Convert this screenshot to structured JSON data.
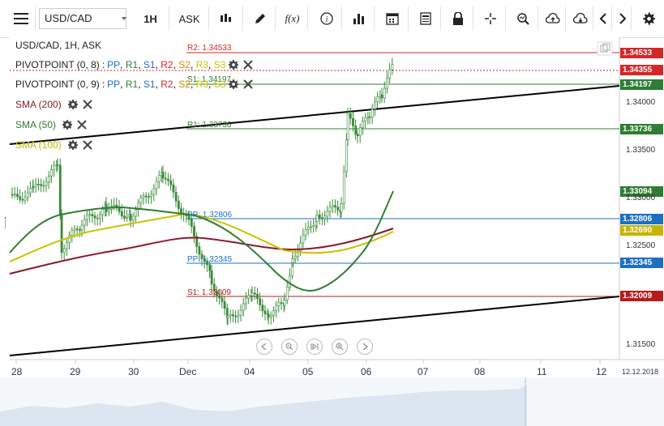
{
  "toolbar": {
    "menu_icon": "hamburger-icon",
    "symbol": "USD/CAD",
    "timeframe": "1H",
    "price_type": "ASK",
    "tools": [
      "candle-icon",
      "pencil-icon",
      "function-icon",
      "info-icon",
      "bar-chart-icon",
      "calendar-icon",
      "document-icon",
      "lock-icon",
      "crosshair-icon",
      "zoom-icon",
      "cloud-upload-icon",
      "cloud-download-icon",
      "chevron-left-icon",
      "chevron-right-icon",
      "gear-icon"
    ]
  },
  "legend": {
    "title": "USD/CAD, 1H, ASK",
    "pivot1": {
      "name": "PIVOTPOINT (0, 8)",
      "pp": "PP",
      "r1": "R1",
      "s1": "S1",
      "r2": "R2",
      "s2": "S2",
      "r3": "R3",
      "s3": "S3"
    },
    "pivot2": {
      "name": "PIVOTPOINT (0, 9)",
      "pp": "PP",
      "r1": "R1",
      "s1": "S1",
      "r2": "R2",
      "s2": "S2",
      "r3": "R3",
      "s3": "S3"
    },
    "sma200": "SMA (200)",
    "sma50": "SMA (50)",
    "sma100": "SMA (100)",
    "sep": ":",
    "comma": ","
  },
  "pivot_labels": {
    "r2": "R2: 1.34533",
    "s1_hidden": "S1: 1.34197",
    "r1": "R1: 1.33736",
    "pp_a": "PP: 1.32806",
    "pp_b": "PP: 1.32345",
    "s1": "S1: 1.32009"
  },
  "price_tags": [
    {
      "value": "1.34533",
      "color": "#d62728"
    },
    {
      "value": "1.34355",
      "color": "#d62728"
    },
    {
      "value": "1.34197",
      "color": "#2e7d32"
    },
    {
      "value": "1.33736",
      "color": "#2e7d32"
    },
    {
      "value": "1.33094",
      "color": "#2e7d32"
    },
    {
      "value": "1.32806",
      "color": "#1e6fc2"
    },
    {
      "value": "1.32690",
      "color": "#c8b400"
    },
    {
      "value": "1.32345",
      "color": "#1e6fc2"
    },
    {
      "value": "1.32009",
      "color": "#b71c1c"
    }
  ],
  "y_axis": [
    "1.34000",
    "1.33500",
    "1.33000",
    "1.32500",
    "1.31500"
  ],
  "x_axis": [
    "28",
    "29",
    "30",
    "Dec",
    "04",
    "05",
    "06",
    "07",
    "08",
    "11",
    "12",
    "12.12.2018"
  ],
  "colors": {
    "sma200": "#8b1a2a",
    "sma50": "#2e7d32",
    "sma100": "#c8c400",
    "candle": "#3a8a3a",
    "trend": "#000000"
  }
}
